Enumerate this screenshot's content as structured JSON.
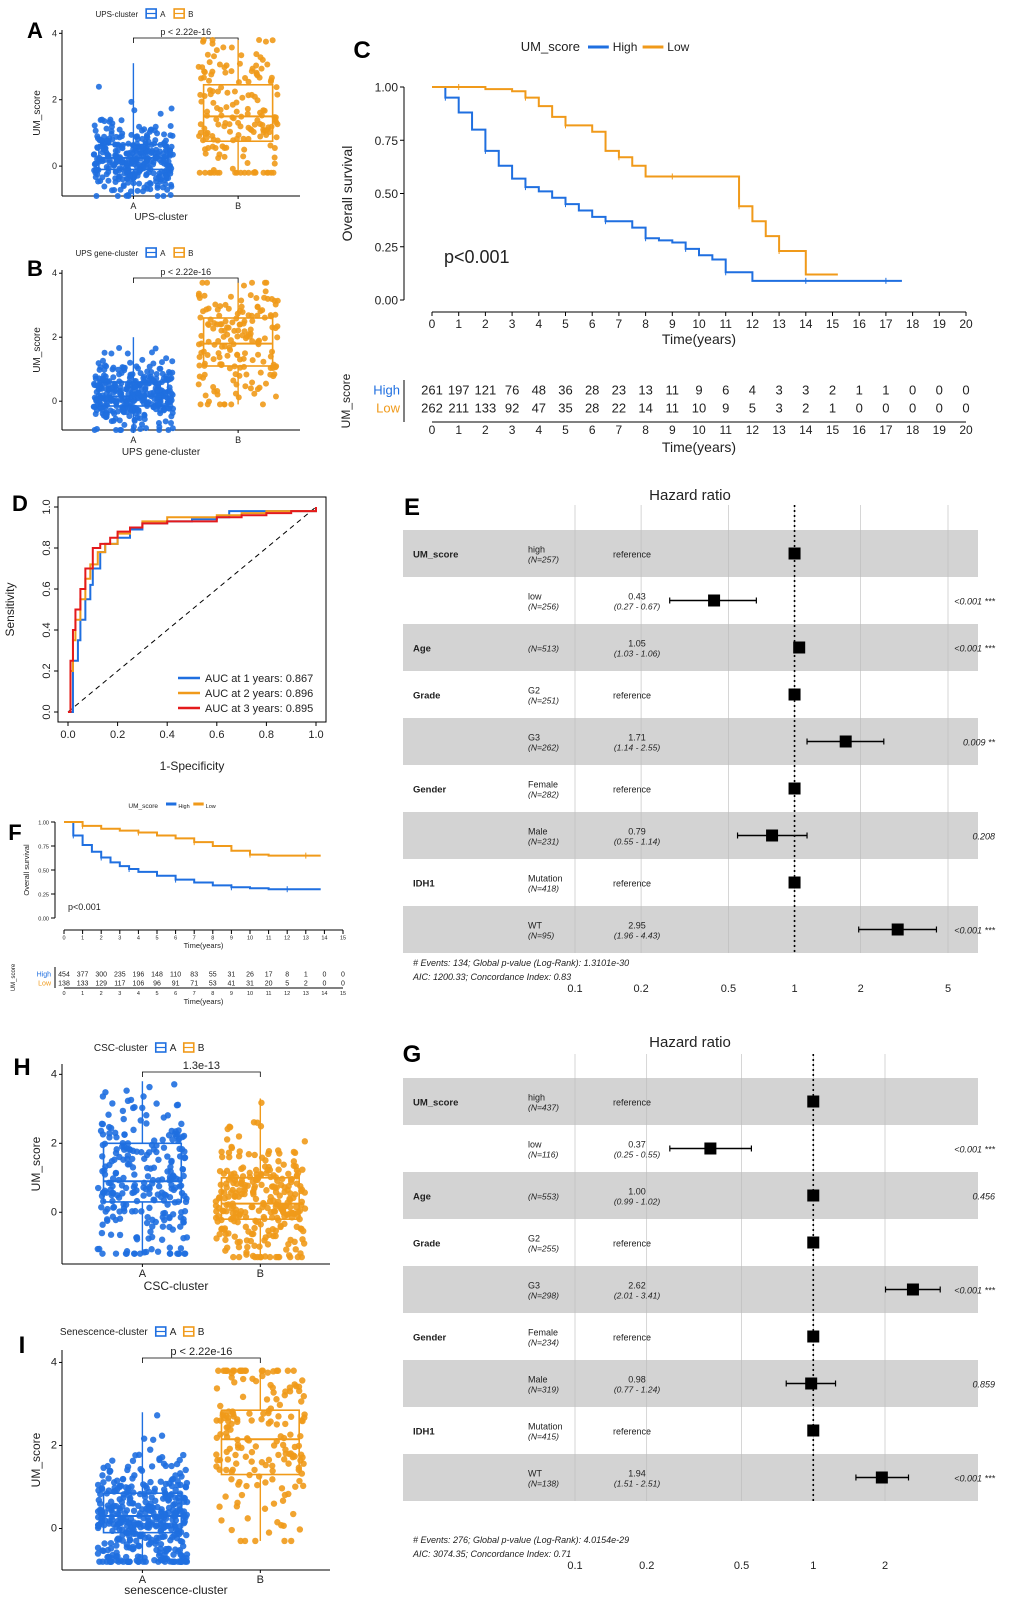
{
  "colors": {
    "blue": "#1f6fe0",
    "orange": "#f09a1a",
    "red": "#e41a1c",
    "gray_band": "#d3d3d3"
  },
  "chart_data": [
    {
      "id": "A",
      "type": "box",
      "panel_label": "A",
      "legend_title": "UPS-cluster",
      "legend_entries": [
        "A",
        "B"
      ],
      "xlabel": "UPS-cluster",
      "ylabel": "UM_score",
      "categories": [
        "A",
        "B"
      ],
      "yticks": [
        0,
        2,
        4
      ],
      "ylim": [
        -0.9,
        4.1
      ],
      "pvalue": "p < 2.22e-16",
      "boxes": [
        {
          "name": "A",
          "q1": -0.1,
          "median": 0.25,
          "q3": 0.65,
          "lo": -0.9,
          "hi": 3.1
        },
        {
          "name": "B",
          "q1": 0.75,
          "median": 1.5,
          "q3": 2.45,
          "lo": -0.2,
          "hi": 3.8
        }
      ]
    },
    {
      "id": "B",
      "type": "box",
      "panel_label": "B",
      "legend_title": "UPS gene-cluster",
      "legend_entries": [
        "A",
        "B"
      ],
      "xlabel": "UPS gene-cluster",
      "ylabel": "UM_score",
      "categories": [
        "A",
        "B"
      ],
      "yticks": [
        0,
        2,
        4
      ],
      "ylim": [
        -0.9,
        4.1
      ],
      "pvalue": "p < 2.22e-16",
      "boxes": [
        {
          "name": "A",
          "q1": -0.15,
          "median": 0.15,
          "q3": 0.6,
          "lo": -0.9,
          "hi": 2.0
        },
        {
          "name": "B",
          "q1": 1.1,
          "median": 1.8,
          "q3": 2.6,
          "lo": -0.1,
          "hi": 3.7
        }
      ]
    },
    {
      "id": "C",
      "type": "line",
      "subtype": "kaplan-meier",
      "panel_label": "C",
      "legend_title": "UM_score",
      "legend_entries": [
        "High",
        "Low"
      ],
      "ylabel": "Overall survival",
      "xlabel": "Time(years)",
      "x_ticks": [
        0,
        1,
        2,
        3,
        4,
        5,
        6,
        7,
        8,
        9,
        10,
        11,
        12,
        13,
        14,
        15,
        16,
        17,
        18,
        19,
        20
      ],
      "y_ticks": [
        "0.00",
        "0.25",
        "0.50",
        "0.75",
        "1.00"
      ],
      "xlim": [
        0,
        20
      ],
      "ylim": [
        0,
        1
      ],
      "pvalue": "p<0.001",
      "series": [
        {
          "name": "High",
          "x": [
            0,
            0.5,
            1,
            1.5,
            2,
            2.5,
            3,
            3.5,
            4,
            4.5,
            5,
            5.5,
            6,
            6.5,
            7,
            7.5,
            8,
            8.5,
            9,
            9.5,
            10,
            10.5,
            11,
            12,
            13,
            14,
            15,
            16,
            17,
            17.6
          ],
          "y": [
            1,
            0.95,
            0.88,
            0.8,
            0.7,
            0.63,
            0.57,
            0.53,
            0.51,
            0.48,
            0.45,
            0.42,
            0.39,
            0.37,
            0.37,
            0.34,
            0.29,
            0.28,
            0.27,
            0.24,
            0.21,
            0.19,
            0.13,
            0.09,
            0.09,
            0.09,
            0.09,
            0.09,
            0.09,
            0.09
          ]
        },
        {
          "name": "Low",
          "x": [
            0,
            1,
            2,
            3,
            3.5,
            4,
            4.5,
            5,
            6,
            6.5,
            7,
            7.5,
            8,
            9,
            10,
            11,
            11.5,
            12,
            12.5,
            13,
            14,
            15.2
          ],
          "y": [
            1,
            1,
            0.99,
            0.98,
            0.95,
            0.91,
            0.86,
            0.82,
            0.79,
            0.7,
            0.67,
            0.63,
            0.58,
            0.58,
            0.58,
            0.58,
            0.44,
            0.37,
            0.3,
            0.23,
            0.12,
            0.12
          ]
        }
      ],
      "risk_table": {
        "title": "UM_score",
        "xlabel": "Time(years)",
        "rows": [
          {
            "name": "High",
            "values": [
              261,
              197,
              121,
              76,
              48,
              36,
              28,
              23,
              13,
              11,
              9,
              6,
              4,
              3,
              3,
              2,
              1,
              1,
              0,
              0,
              0
            ]
          },
          {
            "name": "Low",
            "values": [
              262,
              211,
              133,
              92,
              47,
              35,
              28,
              22,
              14,
              11,
              10,
              9,
              5,
              3,
              2,
              1,
              0,
              0,
              0,
              0,
              0
            ]
          }
        ]
      }
    },
    {
      "id": "D",
      "type": "line",
      "subtype": "roc",
      "panel_label": "D",
      "xlabel": "1-Specificity",
      "ylabel": "Sensitivity",
      "x_ticks": [
        "0.0",
        "0.2",
        "0.4",
        "0.6",
        "0.8",
        "1.0"
      ],
      "y_ticks": [
        "0.0",
        "0.2",
        "0.4",
        "0.6",
        "0.8",
        "1.0"
      ],
      "xlim": [
        0,
        1
      ],
      "ylim": [
        0,
        1
      ],
      "series": [
        {
          "name": "AUC at 1 years: 0.867",
          "color": "#1f6fe0",
          "x": [
            0,
            0.02,
            0.02,
            0.04,
            0.05,
            0.07,
            0.09,
            0.1,
            0.13,
            0.15,
            0.2,
            0.25,
            0.3,
            0.4,
            0.5,
            0.6,
            0.65,
            0.75,
            0.9,
            1
          ],
          "y": [
            0,
            0.08,
            0.25,
            0.35,
            0.45,
            0.55,
            0.62,
            0.7,
            0.78,
            0.82,
            0.85,
            0.89,
            0.92,
            0.93,
            0.94,
            0.95,
            0.98,
            0.98,
            0.98,
            1
          ]
        },
        {
          "name": "AUC at 2 years: 0.896",
          "color": "#f09a1a",
          "x": [
            0,
            0.01,
            0.02,
            0.03,
            0.05,
            0.07,
            0.09,
            0.12,
            0.15,
            0.2,
            0.25,
            0.3,
            0.4,
            0.5,
            0.6,
            0.7,
            0.8,
            0.9,
            1
          ],
          "y": [
            0,
            0.2,
            0.35,
            0.45,
            0.55,
            0.65,
            0.72,
            0.78,
            0.82,
            0.87,
            0.9,
            0.93,
            0.95,
            0.95,
            0.96,
            0.97,
            0.98,
            0.98,
            1
          ]
        },
        {
          "name": "AUC at 3 years: 0.895",
          "color": "#e41a1c",
          "x": [
            0,
            0.01,
            0.02,
            0.03,
            0.05,
            0.07,
            0.1,
            0.13,
            0.17,
            0.2,
            0.25,
            0.3,
            0.4,
            0.5,
            0.6,
            0.7,
            0.8,
            0.9,
            1
          ],
          "y": [
            0,
            0.25,
            0.4,
            0.5,
            0.6,
            0.7,
            0.8,
            0.82,
            0.85,
            0.88,
            0.9,
            0.92,
            0.93,
            0.93,
            0.95,
            0.96,
            0.97,
            0.98,
            1
          ]
        }
      ]
    },
    {
      "id": "E",
      "type": "forest",
      "panel_label": "E",
      "title": "Hazard ratio",
      "x_ticks": [
        "0.1",
        "0.2",
        "0.5",
        "1",
        "2",
        "5"
      ],
      "x_tick_values": [
        0.1,
        0.2,
        0.5,
        1,
        2,
        5
      ],
      "rows": [
        {
          "var": "UM_score",
          "level": "high",
          "n": "(N=257)",
          "est": "reference",
          "hr": 1
        },
        {
          "var": "",
          "level": "low",
          "n": "(N=256)",
          "est": "0.43",
          "ci_text": "(0.27 - 0.67)",
          "hr": 0.43,
          "lo": 0.27,
          "hi": 0.67,
          "p": "<0.001 ***"
        },
        {
          "var": "Age",
          "level": "",
          "n": "(N=513)",
          "est": "1.05",
          "ci_text": "(1.03 - 1.06)",
          "hr": 1.05,
          "lo": 1.03,
          "hi": 1.06,
          "p": "<0.001 ***"
        },
        {
          "var": "Grade",
          "level": "G2",
          "n": "(N=251)",
          "est": "reference",
          "hr": 1
        },
        {
          "var": "",
          "level": "G3",
          "n": "(N=262)",
          "est": "1.71",
          "ci_text": "(1.14 - 2.55)",
          "hr": 1.71,
          "lo": 1.14,
          "hi": 2.55,
          "p": "0.009 **"
        },
        {
          "var": "Gender",
          "level": "Female",
          "n": "(N=282)",
          "est": "reference",
          "hr": 1
        },
        {
          "var": "",
          "level": "Male",
          "n": "(N=231)",
          "est": "0.79",
          "ci_text": "(0.55 - 1.14)",
          "hr": 0.79,
          "lo": 0.55,
          "hi": 1.14,
          "p": "0.208"
        },
        {
          "var": "IDH1",
          "level": "Mutation",
          "n": "(N=418)",
          "est": "reference",
          "hr": 1
        },
        {
          "var": "",
          "level": "WT",
          "n": "(N=95)",
          "est": "2.95",
          "ci_text": "(1.96 - 4.43)",
          "hr": 2.95,
          "lo": 1.96,
          "hi": 4.43,
          "p": "<0.001 ***"
        }
      ],
      "footnote1": "# Events: 134; Global p-value (Log-Rank): 1.3101e-30",
      "footnote2": "AIC: 1200.33; Concordance Index: 0.83"
    },
    {
      "id": "F",
      "type": "line",
      "subtype": "kaplan-meier",
      "panel_label": "F",
      "legend_title": "UM_score",
      "legend_entries": [
        "High",
        "Low"
      ],
      "ylabel": "Overall survival",
      "xlabel": "Time(years)",
      "x_ticks": [
        0,
        1,
        2,
        3,
        4,
        5,
        6,
        7,
        8,
        9,
        10,
        11,
        12,
        13,
        14,
        15
      ],
      "y_ticks": [
        "0.00",
        "0.25",
        "0.50",
        "0.75",
        "1.00"
      ],
      "xlim": [
        0,
        15
      ],
      "ylim": [
        0,
        1
      ],
      "pvalue": "p<0.001",
      "series": [
        {
          "name": "High",
          "x": [
            0,
            0.5,
            1,
            1.5,
            2,
            2.5,
            3,
            3.5,
            4,
            5,
            6,
            7,
            8,
            9,
            10,
            11,
            12,
            13,
            13.8
          ],
          "y": [
            1,
            0.86,
            0.76,
            0.69,
            0.63,
            0.58,
            0.54,
            0.51,
            0.48,
            0.44,
            0.4,
            0.37,
            0.34,
            0.32,
            0.31,
            0.3,
            0.3,
            0.3,
            0.3
          ]
        },
        {
          "name": "Low",
          "x": [
            0,
            1,
            2,
            3,
            4,
            5,
            6,
            7,
            8,
            9,
            10,
            11,
            12,
            13,
            13.8
          ],
          "y": [
            1,
            0.96,
            0.93,
            0.91,
            0.89,
            0.86,
            0.83,
            0.79,
            0.75,
            0.7,
            0.66,
            0.65,
            0.65,
            0.65,
            0.65
          ]
        }
      ],
      "risk_table": {
        "title": "UM_score",
        "xlabel": "Time(years)",
        "rows": [
          {
            "name": "High",
            "values": [
              454,
              377,
              300,
              235,
              196,
              148,
              110,
              83,
              55,
              31,
              26,
              17,
              8,
              1,
              0,
              0
            ]
          },
          {
            "name": "Low",
            "values": [
              138,
              133,
              129,
              117,
              106,
              96,
              91,
              71,
              53,
              41,
              31,
              20,
              5,
              2,
              0,
              0
            ]
          }
        ]
      }
    },
    {
      "id": "H",
      "type": "box",
      "panel_label": "H",
      "legend_title": "CSC-cluster",
      "legend_entries": [
        "A",
        "B"
      ],
      "xlabel": "CSC-cluster",
      "ylabel": "UM_score",
      "categories": [
        "A",
        "B"
      ],
      "yticks": [
        0,
        2,
        4
      ],
      "ylim": [
        -1.5,
        4.3
      ],
      "pvalue": "1.3e-13",
      "boxes": [
        {
          "name": "A",
          "q1": 0.3,
          "median": 0.9,
          "q3": 2.0,
          "lo": -1.2,
          "hi": 3.8
        },
        {
          "name": "B",
          "q1": -0.2,
          "median": 0.25,
          "q3": 1.0,
          "lo": -1.3,
          "hi": 3.3
        }
      ]
    },
    {
      "id": "G",
      "type": "forest",
      "panel_label": "G",
      "title": "Hazard ratio",
      "x_ticks": [
        "0.1",
        "0.2",
        "0.5",
        "1",
        "2"
      ],
      "x_tick_values": [
        0.1,
        0.2,
        0.5,
        1,
        2
      ],
      "rows": [
        {
          "var": "UM_score",
          "level": "high",
          "n": "(N=437)",
          "est": "reference",
          "hr": 1
        },
        {
          "var": "",
          "level": "low",
          "n": "(N=116)",
          "est": "0.37",
          "ci_text": "(0.25 - 0.55)",
          "hr": 0.37,
          "lo": 0.25,
          "hi": 0.55,
          "p": "<0.001 ***"
        },
        {
          "var": "Age",
          "level": "",
          "n": "(N=553)",
          "est": "1.00",
          "ci_text": "(0.99 - 1.02)",
          "hr": 1.0,
          "lo": 0.99,
          "hi": 1.02,
          "p": "0.456"
        },
        {
          "var": "Grade",
          "level": "G2",
          "n": "(N=255)",
          "est": "reference",
          "hr": 1
        },
        {
          "var": "",
          "level": "G3",
          "n": "(N=298)",
          "est": "2.62",
          "ci_text": "(2.01 - 3.41)",
          "hr": 2.62,
          "lo": 2.01,
          "hi": 3.41,
          "p": "<0.001 ***"
        },
        {
          "var": "Gender",
          "level": "Female",
          "n": "(N=234)",
          "est": "reference",
          "hr": 1
        },
        {
          "var": "",
          "level": "Male",
          "n": "(N=319)",
          "est": "0.98",
          "ci_text": "(0.77 - 1.24)",
          "hr": 0.98,
          "lo": 0.77,
          "hi": 1.24,
          "p": "0.859"
        },
        {
          "var": "IDH1",
          "level": "Mutation",
          "n": "(N=415)",
          "est": "reference",
          "hr": 1
        },
        {
          "var": "",
          "level": "WT",
          "n": "(N=138)",
          "est": "1.94",
          "ci_text": "(1.51 - 2.51)",
          "hr": 1.94,
          "lo": 1.51,
          "hi": 2.51,
          "p": "<0.001 ***"
        }
      ],
      "footnote1": "# Events: 276; Global p-value (Log-Rank): 4.0154e-29",
      "footnote2": "AIC: 3074.35; Concordance Index: 0.71"
    },
    {
      "id": "I",
      "type": "box",
      "panel_label": "I",
      "legend_title": "Senescence-cluster",
      "legend_entries": [
        "A",
        "B"
      ],
      "xlabel": "senescence-cluster",
      "ylabel": "UM_score",
      "categories": [
        "A",
        "B"
      ],
      "yticks": [
        0,
        2,
        4
      ],
      "ylim": [
        -1.0,
        4.3
      ],
      "pvalue": "p < 2.22e-16",
      "boxes": [
        {
          "name": "A",
          "q1": -0.1,
          "median": 0.3,
          "q3": 0.85,
          "lo": -0.8,
          "hi": 2.8
        },
        {
          "name": "B",
          "q1": 1.3,
          "median": 2.15,
          "q3": 2.85,
          "lo": -0.3,
          "hi": 3.8
        }
      ]
    }
  ]
}
